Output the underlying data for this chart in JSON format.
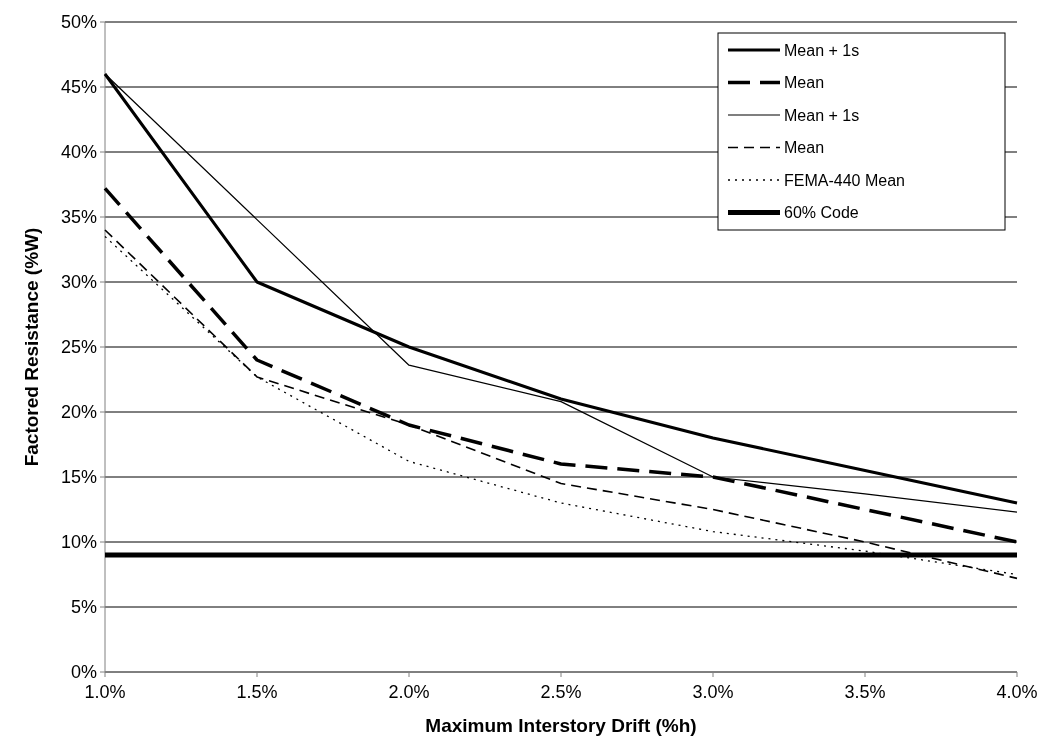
{
  "chart_data": {
    "type": "line",
    "xlabel": "Maximum Interstory Drift (%h)",
    "ylabel": "Factored Resistance (%W)",
    "x": [
      1.0,
      1.5,
      2.0,
      2.5,
      3.0,
      3.5,
      4.0
    ],
    "xlim": [
      1.0,
      4.0
    ],
    "xticks": [
      {
        "value": 1.0,
        "label": "1.0%"
      },
      {
        "value": 1.5,
        "label": "1.5%"
      },
      {
        "value": 2.0,
        "label": "2.0%"
      },
      {
        "value": 2.5,
        "label": "2.5%"
      },
      {
        "value": 3.0,
        "label": "3.0%"
      },
      {
        "value": 3.5,
        "label": "3.5%"
      },
      {
        "value": 4.0,
        "label": "4.0%"
      }
    ],
    "ylim": [
      0,
      50
    ],
    "yticks": [
      {
        "value": 0,
        "label": "0%"
      },
      {
        "value": 5,
        "label": "5%"
      },
      {
        "value": 10,
        "label": "10%"
      },
      {
        "value": 15,
        "label": "15%"
      },
      {
        "value": 20,
        "label": "20%"
      },
      {
        "value": 25,
        "label": "25%"
      },
      {
        "value": 30,
        "label": "30%"
      },
      {
        "value": 35,
        "label": "35%"
      },
      {
        "value": 40,
        "label": "40%"
      },
      {
        "value": 45,
        "label": "45%"
      },
      {
        "value": 50,
        "label": "50%"
      }
    ],
    "grid": "y",
    "legend": "top right",
    "marker": "none",
    "series": [
      {
        "name": "Mean + 1s",
        "color": "#000000",
        "line_style": "solid",
        "values": [
          46,
          30,
          25,
          21,
          18,
          15.5,
          13
        ]
      },
      {
        "name": "Mean",
        "color": "#000000",
        "line_style": "dashed",
        "values": [
          37.2,
          24,
          19,
          16,
          15,
          12.5,
          10
        ]
      },
      {
        "name": "Mean + 1s",
        "color": "#000000",
        "line_style": "solid",
        "values": [
          46,
          34.8,
          23.6,
          20.8,
          15,
          13.7,
          12.3
        ]
      },
      {
        "name": "Mean",
        "color": "#000000",
        "line_style": "dashed",
        "values": [
          34,
          22.7,
          19,
          14.5,
          12.5,
          10,
          7.2
        ]
      },
      {
        "name": "FEMA-440 Mean",
        "color": "#000000",
        "line_style": "dotted",
        "values": [
          33.5,
          22.7,
          16.2,
          13,
          10.8,
          9.3,
          7.5
        ]
      },
      {
        "name": "60% Code",
        "color": "#000000",
        "line_style": "solid",
        "values": [
          9,
          9,
          9,
          9,
          9,
          9,
          9
        ]
      }
    ]
  }
}
